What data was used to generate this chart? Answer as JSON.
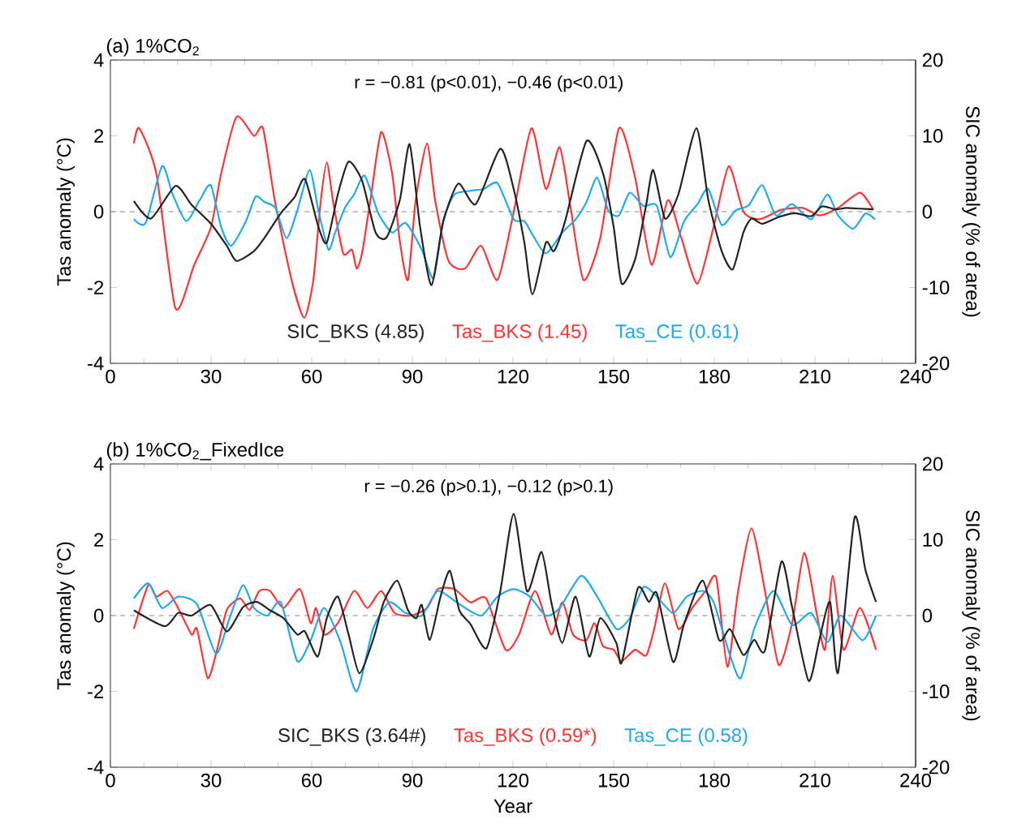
{
  "chart_data": [
    {
      "type": "line",
      "title": "(a) 1%CO$_{2}$",
      "ylabel": "Tas anomaly (°C)",
      "y2label": "SIC anomaly (% of area)",
      "annotations": [
        "r = −0.81 (p<0.01), −0.46 (p<0.01)"
      ],
      "xlim": [
        0,
        240
      ],
      "xticks": [
        0,
        30,
        60,
        90,
        120,
        150,
        180,
        210,
        240
      ],
      "ylim": [
        -4,
        4
      ],
      "yticks": [
        -4,
        -2,
        0,
        2,
        4
      ],
      "y2lim": [
        -20,
        20
      ],
      "y2ticks": [
        -20,
        -10,
        0,
        10,
        20
      ],
      "legend": "bottom",
      "line_style": "solid",
      "ref_lines": [
        {
          "axis": "y",
          "value": 0,
          "color": "#888888",
          "line_style": "dashed"
        }
      ],
      "series": [
        {
          "name": "SIC_BKS (4.85)",
          "color": "#222222",
          "axis": "y2",
          "x": [
            7,
            12.1,
            19.4,
            24.2,
            30,
            34.7,
            37.6,
            42.8,
            46,
            50.8,
            54.9,
            58,
            62,
            64.5,
            67.8,
            71,
            75,
            79,
            82.3,
            86.3,
            89.2,
            92.3,
            95.7,
            99.2,
            103.7,
            108.9,
            116.2,
            120.2,
            123.4,
            125.8,
            129.8,
            132.2,
            135.5,
            141.9,
            146.8,
            150,
            152.4,
            156.4,
            159.7,
            161.8,
            165.3,
            169.3,
            174.7,
            178.2,
            182.2,
            185.5,
            188.7,
            191.1,
            194.3,
            199.2,
            204,
            208.9,
            212.1,
            216.1,
            219.3,
            223.4,
            227.4
          ],
          "values": [
            1.4,
            -0.9,
            3.4,
            0.9,
            -1.6,
            -4.5,
            -6.5,
            -5.2,
            -3.4,
            -0.2,
            1.9,
            4.3,
            -2,
            -4.1,
            2.3,
            6.6,
            4.1,
            -2.7,
            -3.4,
            1.6,
            8.9,
            -2,
            -9.7,
            -1.3,
            3.7,
            1,
            8.3,
            3,
            -4.1,
            -10.9,
            -4.1,
            -5.2,
            -1.3,
            9.3,
            5.1,
            -2,
            -9.5,
            -6.3,
            0.9,
            5.5,
            -0.9,
            2.3,
            11,
            1.6,
            -5.2,
            -7.6,
            -2.7,
            -0.9,
            -1.6,
            -0.7,
            -0.2,
            -0.6,
            0.7,
            0.3,
            0.5,
            0.4,
            0.3
          ]
        },
        {
          "name": "Tas_BKS (1.45)",
          "color": "#ff3333",
          "x": [
            7,
            8.6,
            13.7,
            19.4,
            25,
            30,
            33,
            37.6,
            42.8,
            45.5,
            49,
            54,
            57.8,
            60.5,
            62.6,
            64.5,
            66.5,
            69.4,
            72,
            73.4,
            75,
            77.5,
            80.7,
            84,
            86.3,
            88.7,
            91,
            94.4,
            96.8,
            100.8,
            105.7,
            110.5,
            115.4,
            120,
            125.5,
            129.8,
            133.9,
            137,
            141,
            146,
            151.6,
            156.4,
            161.3,
            166.1,
            170.2,
            175,
            179.8,
            184.3,
            188.7,
            193.5,
            200,
            206.4,
            211.3,
            216.9,
            223.4,
            227.4
          ],
          "values": [
            1.8,
            2.2,
            1,
            -2.55,
            -1.4,
            -0.4,
            1,
            2.5,
            2,
            2.2,
            0.3,
            -1.8,
            -2.8,
            -1.8,
            0.2,
            1.3,
            0.2,
            -1.1,
            -1,
            -1.5,
            -1.1,
            0.3,
            2.1,
            1,
            -0.8,
            -1.8,
            0.3,
            1.8,
            0.3,
            -1.3,
            -1.5,
            -0.9,
            -1.8,
            -0.1,
            2.2,
            0.6,
            1.7,
            0.2,
            -1.8,
            -0.7,
            2.2,
            0.9,
            -1.4,
            0.3,
            -0.7,
            -1.9,
            -0.4,
            1.2,
            0,
            -0.2,
            0.05,
            0.1,
            -0.1,
            0.1,
            0.5,
            0.05
          ]
        },
        {
          "name": "Tas_CE (0.61)",
          "color": "#1eaaf0",
          "x": [
            7,
            10.5,
            15.4,
            18.6,
            22.6,
            26.6,
            29.9,
            33,
            36,
            40.4,
            43.3,
            46,
            49.2,
            52.5,
            55.7,
            59.4,
            62,
            65,
            67,
            69.9,
            72.6,
            75.8,
            79.9,
            84,
            88,
            92.8,
            96.3,
            99.2,
            102.5,
            107.3,
            111.3,
            115.4,
            120.2,
            123.4,
            125.8,
            129.8,
            134.7,
            138.7,
            141.9,
            145.1,
            148.4,
            151.6,
            154.8,
            158.9,
            162.9,
            166.9,
            171,
            175,
            178.2,
            182.2,
            186.3,
            190.3,
            194.3,
            198.4,
            203.2,
            208.9,
            213.7,
            216.9,
            221.4,
            225,
            227.9
          ],
          "values": [
            -0.2,
            -0.3,
            1.2,
            0.45,
            -0.25,
            0.3,
            0.7,
            -0.4,
            -0.9,
            -0.25,
            0.4,
            0.25,
            0.1,
            -0.7,
            0.03,
            1.1,
            0.03,
            -1,
            -0.55,
            0.1,
            0.45,
            0.95,
            -0.05,
            -0.55,
            -0.3,
            -1,
            -1.75,
            -0.25,
            0.45,
            0.55,
            0.6,
            0.75,
            -0.2,
            -0.25,
            -0.6,
            -1.1,
            -0.55,
            -0.2,
            0.25,
            0.9,
            0.03,
            -0.1,
            0.5,
            0.15,
            0.15,
            -1.2,
            -0.25,
            0.2,
            0.6,
            -0.35,
            0.03,
            0.17,
            0.7,
            -0.1,
            0.2,
            -0.2,
            0.45,
            -0.1,
            -0.45,
            -0.05,
            -0.2
          ]
        }
      ]
    },
    {
      "type": "line",
      "title": "(b) 1%CO$_{2}$_FixedIce",
      "xlabel": "Year",
      "ylabel": "Tas anomaly (°C)",
      "y2label": "SIC anomaly (% of area)",
      "annotations": [
        "r = −0.26 (p>0.1), −0.12 (p>0.1)"
      ],
      "xlim": [
        0,
        240
      ],
      "xticks": [
        0,
        30,
        60,
        90,
        120,
        150,
        180,
        210,
        240
      ],
      "ylim": [
        -4,
        4
      ],
      "yticks": [
        -4,
        -2,
        0,
        2,
        4
      ],
      "y2lim": [
        -20,
        20
      ],
      "y2ticks": [
        -20,
        -10,
        0,
        10,
        20
      ],
      "legend": "bottom",
      "line_style": "solid",
      "ref_lines": [
        {
          "axis": "y",
          "value": 0,
          "color": "#888888",
          "line_style": "dashed"
        }
      ],
      "series": [
        {
          "name": "SIC_BKS (3.64#)",
          "color": "#222222",
          "axis": "y2",
          "x": [
            7,
            16.2,
            20.2,
            24.2,
            29.9,
            34.7,
            39.5,
            43.6,
            47.6,
            51.6,
            55.7,
            58,
            61.8,
            64.5,
            67.8,
            71,
            74.2,
            78.3,
            81.5,
            85.5,
            88.7,
            91.2,
            92.8,
            95.2,
            98.4,
            101.2,
            104,
            107.3,
            112.1,
            116.2,
            120.2,
            124.2,
            128.5,
            131.4,
            134.7,
            138.7,
            142.7,
            146,
            150.8,
            152.4,
            157.2,
            160.5,
            162.9,
            167.7,
            171,
            176.6,
            181.4,
            184.7,
            188.7,
            191.9,
            195.1,
            200,
            203.2,
            208.1,
            211.3,
            214.5,
            216.9,
            221.8,
            225,
            228.2
          ],
          "values": [
            0.7,
            -1.4,
            0.35,
            0,
            1.4,
            -2.1,
            1.1,
            1.8,
            0.7,
            -0.35,
            -2.5,
            -2.1,
            -5.4,
            -0.35,
            2.5,
            -2.5,
            -7.6,
            -3.2,
            1.8,
            4.6,
            0.7,
            -0.35,
            1.4,
            -3.2,
            2.5,
            5.9,
            0.7,
            -1.1,
            -4.3,
            3.2,
            13.4,
            3.2,
            8.4,
            1.8,
            -3.6,
            2.5,
            -5.4,
            -0.35,
            -3.6,
            -6.2,
            3.6,
            1.8,
            2.9,
            -6.1,
            -1.1,
            4.6,
            -3.2,
            -1.8,
            -5.2,
            -3.2,
            -4.6,
            7.1,
            1.1,
            -8.6,
            -3.2,
            1.8,
            -7.5,
            12.9,
            6.1,
            1.8
          ]
        },
        {
          "name": "Tas_BKS (0.59*)",
          "color": "#ff3333",
          "x": [
            7,
            11.3,
            13.7,
            17,
            20.2,
            24.2,
            25.8,
            29,
            31.8,
            34.7,
            38.7,
            41.5,
            44.4,
            47.6,
            51.6,
            56.5,
            59.7,
            61.3,
            63.7,
            67.8,
            72.6,
            76.6,
            80.7,
            84.7,
            89.5,
            94.4,
            97.6,
            102.5,
            107.3,
            112,
            117.8,
            121.8,
            126.6,
            131.4,
            134.7,
            137.9,
            141.9,
            144.3,
            146.8,
            150,
            152.4,
            156.4,
            159.7,
            162.1,
            165.3,
            169.3,
            173.4,
            177.4,
            180.6,
            183.9,
            187.1,
            191.1,
            195.1,
            199.2,
            203.2,
            206.8,
            210.5,
            213,
            215.3,
            218.5,
            223.4,
            228.2
          ],
          "values": [
            -0.35,
            0.8,
            0.5,
            0.65,
            0.2,
            -0.5,
            -0.35,
            -1.65,
            -0.9,
            0.15,
            0.45,
            0.15,
            0.65,
            0.65,
            0.2,
            0.7,
            -0.2,
            0.2,
            -0.5,
            -0.2,
            0.65,
            0.2,
            0.65,
            0.07,
            0,
            0.2,
            0.7,
            0.7,
            0.35,
            0.45,
            -0.9,
            -0.5,
            0.65,
            -0.5,
            0.35,
            -0.5,
            -0.65,
            -0.2,
            -0.8,
            -0.9,
            -1.2,
            -0.9,
            -1.05,
            -0.35,
            0.85,
            -0.35,
            0.2,
            0.65,
            1,
            -1.35,
            0.65,
            2.3,
            0.65,
            -1.3,
            -0.2,
            1.65,
            0.07,
            -0.9,
            1.05,
            -0.9,
            0.2,
            -0.9
          ]
        },
        {
          "name": "Tas_CE (0.58)",
          "color": "#1eaaf0",
          "x": [
            7,
            11.3,
            15.4,
            20.2,
            25.8,
            31.5,
            35.5,
            39.5,
            42.8,
            46.8,
            50.8,
            55.7,
            59.7,
            63.7,
            68.6,
            73.4,
            78.3,
            83.1,
            88,
            92.8,
            97.6,
            104,
            110.5,
            115.4,
            120.2,
            125,
            129.8,
            133.9,
            140.3,
            145.1,
            150.8,
            154.8,
            158.9,
            162.9,
            167.7,
            171.8,
            176.6,
            179.8,
            184.7,
            187.9,
            191.9,
            197.6,
            203.2,
            208.9,
            213.7,
            217.7,
            224.2,
            228.2
          ],
          "values": [
            0.45,
            0.85,
            0.2,
            0.5,
            0.3,
            -1,
            -0.07,
            0.8,
            0.2,
            0,
            0.35,
            -1.2,
            -0.65,
            0.2,
            -0.7,
            -2,
            -0.35,
            0.35,
            0.07,
            0,
            0.65,
            0.3,
            0,
            0.5,
            0.7,
            0.5,
            0,
            0.2,
            1.05,
            0.5,
            -0.35,
            -0.07,
            0.75,
            0.5,
            0.07,
            0.5,
            0.65,
            0.35,
            -1.05,
            -1.65,
            -0.35,
            0.65,
            -0.25,
            0.07,
            -0.7,
            0,
            -0.65,
            0
          ]
        }
      ]
    }
  ]
}
